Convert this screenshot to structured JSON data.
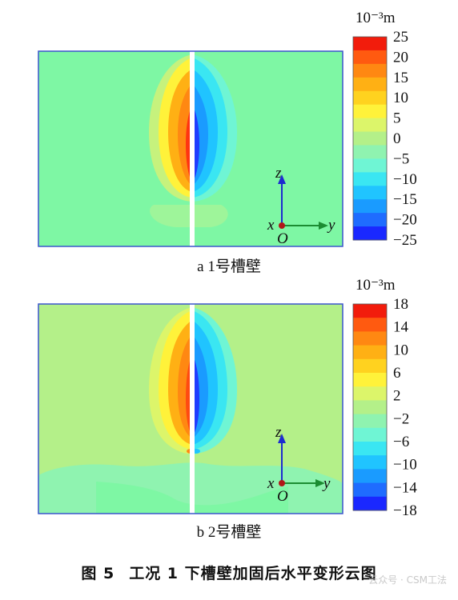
{
  "figure": {
    "caption_number": "图 5",
    "caption_text": "工况 1 下槽壁加固后水平变形云图",
    "watermark": "云众号 · CSM工法"
  },
  "palette": [
    "#1a28ff",
    "#1f6cff",
    "#1a9bff",
    "#20c4ff",
    "#3ae6f2",
    "#6ff5d4",
    "#8ff3b0",
    "#b4f089",
    "#dcf56a",
    "#fff23a",
    "#ffd21f",
    "#ffb014",
    "#ff8812",
    "#ff5a10",
    "#f21c0c"
  ],
  "colors": {
    "background": "#7ef7a4",
    "frame": "#3a55cc",
    "axis_z": "#1d2ccf",
    "axis_y": "#1c8c32",
    "origin": "#b01818"
  },
  "panels": [
    {
      "subcaption": "a  1号槽壁",
      "unit": "10⁻³m",
      "ticks": [
        "25",
        "20",
        "15",
        "10",
        "5",
        "0",
        "−5",
        "−10",
        "−15",
        "−20",
        "−25"
      ],
      "axes": {
        "z": "z",
        "x": "x",
        "y": "y",
        "origin": "O"
      }
    },
    {
      "subcaption": "b  2号槽壁",
      "unit": "10⁻³m",
      "ticks": [
        "18",
        "14",
        "10",
        "6",
        "2",
        "−2",
        "−6",
        "−10",
        "−14",
        "−18"
      ],
      "axes": {
        "z": "z",
        "x": "x",
        "y": "y",
        "origin": "O"
      }
    }
  ]
}
